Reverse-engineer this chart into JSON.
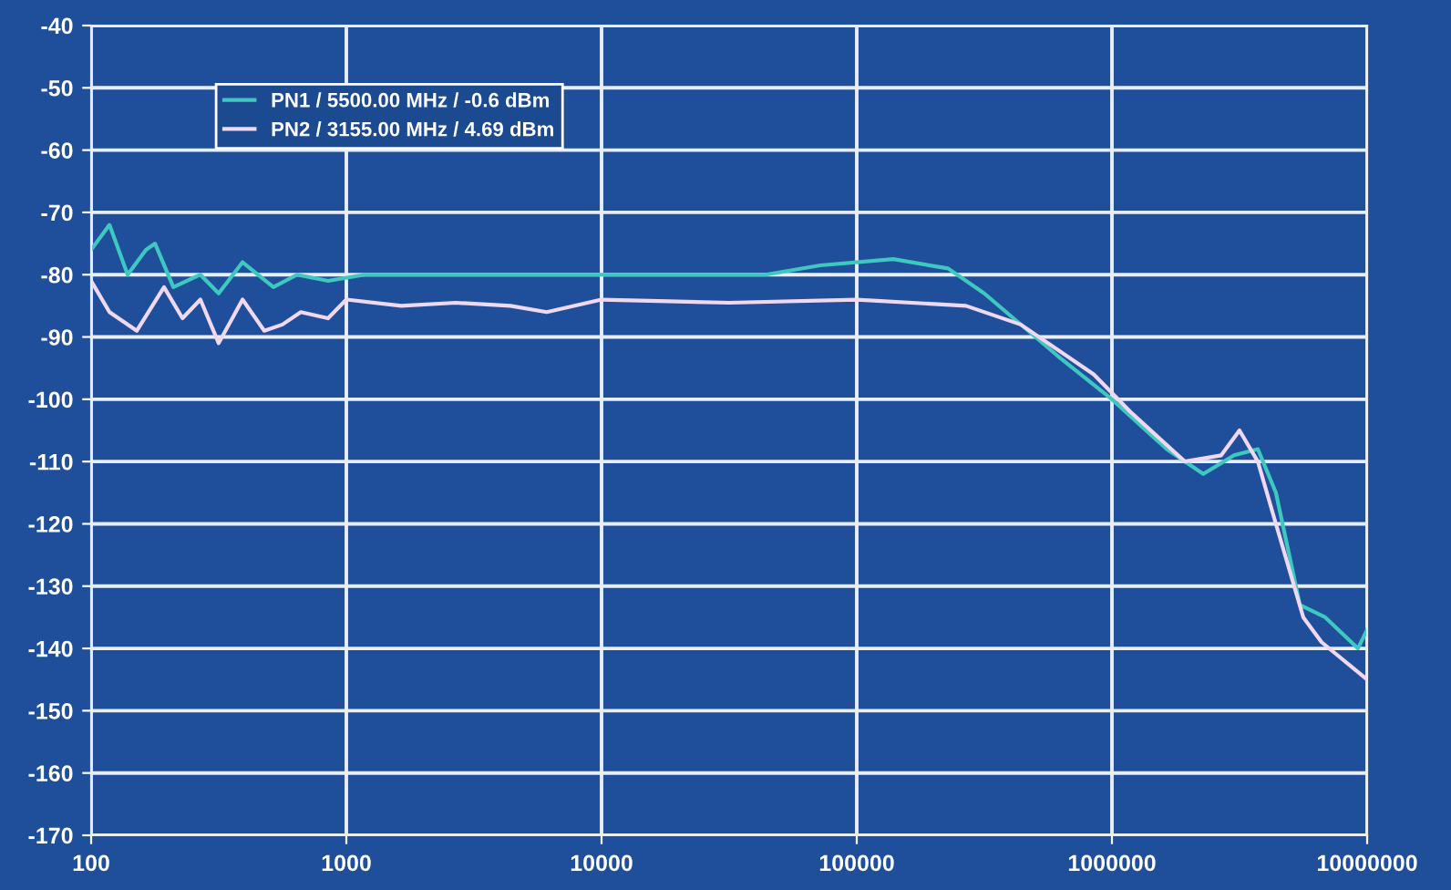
{
  "chart_data": {
    "type": "line",
    "series": [
      {
        "name": "PN1 / 5500.00 MHz / -0.6 dBm",
        "color": "#3ec8c0",
        "x": [
          100,
          118,
          139,
          164,
          178,
          210,
          268,
          316,
          392,
          518,
          641,
          848,
          1180,
          2680,
          6100,
          13900,
          43900,
          72000,
          139000,
          228000,
          316000,
          611000,
          1000000,
          1640000,
          2280000,
          3010000,
          3730000,
          4390000,
          5450000,
          6850000,
          9200000,
          10000000
        ],
        "values": [
          -76,
          -72,
          -80,
          -76,
          -75,
          -82,
          -80,
          -83,
          -78,
          -82,
          -80,
          -81,
          -80,
          -80,
          -80,
          -80,
          -80,
          -78.5,
          -77.5,
          -79,
          -83,
          -93,
          -100,
          -108,
          -112,
          -109,
          -108,
          -115,
          -133,
          -135,
          -140,
          -137
        ]
      },
      {
        "name": "PN2 / 3155.00 MHz / 4.69 dBm",
        "color": "#f0d8f0",
        "x": [
          100,
          118,
          151,
          193,
          228,
          268,
          316,
          392,
          477,
          562,
          663,
          848,
          1000,
          1640,
          2680,
          4390,
          6100,
          10000,
          31600,
          100000,
          268000,
          439000,
          848000,
          1180000,
          1930000,
          2680000,
          3160000,
          3730000,
          4390000,
          5620000,
          6630000,
          10000000
        ],
        "values": [
          -81,
          -86,
          -89,
          -82,
          -87,
          -84,
          -91,
          -84,
          -89,
          -88,
          -86,
          -87,
          -84,
          -85,
          -84.5,
          -85,
          -86,
          -84,
          -84.5,
          -84,
          -85,
          -88,
          -96,
          -102,
          -110,
          -109,
          -105,
          -110,
          -120,
          -135,
          -139,
          -145
        ]
      }
    ],
    "log": "x",
    "xlim": [
      100,
      10000000
    ],
    "xticks": [
      100,
      1000,
      10000,
      100000,
      1000000,
      10000000
    ],
    "ylim": [
      -170,
      -40
    ],
    "yticks": [
      -170,
      -160,
      -150,
      -140,
      -130,
      -120,
      -110,
      -100,
      -90,
      -80,
      -70,
      -60,
      -50,
      -40
    ],
    "grid": true,
    "legend": "top left",
    "marker": "none",
    "line_style": "solid"
  }
}
